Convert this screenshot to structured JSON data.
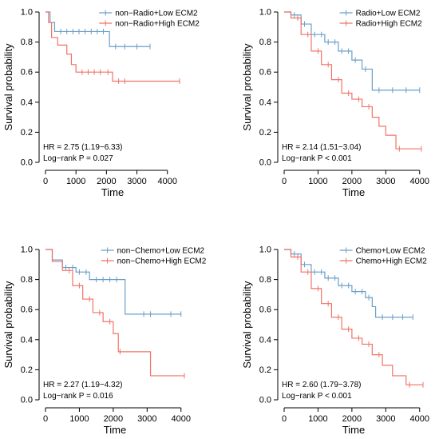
{
  "chart_data": [
    {
      "type": "line",
      "subtype": "kaplan-meier",
      "xlabel": "Time",
      "ylabel": "Survival probability",
      "xlim": [
        0,
        4400
      ],
      "ylim": [
        0.0,
        1.0
      ],
      "xticks": [
        0,
        1000,
        2000,
        3000,
        4000
      ],
      "yticks": [
        0.0,
        0.2,
        0.4,
        0.6,
        0.8,
        1.0
      ],
      "legend_position": "top-right",
      "annotations": [
        "HR = 2.75 (1.19−6.33)",
        "Log−rank P = 0.027"
      ],
      "series": [
        {
          "name": "non−Radio+Low ECM2",
          "color": "#6a9fc9",
          "x": [
            0,
            150,
            300,
            2100,
            2100,
            3430
          ],
          "y": [
            1.0,
            0.93,
            0.87,
            0.87,
            0.77,
            0.77
          ],
          "censor_x": [
            500,
            700,
            900,
            1100,
            1300,
            1500,
            1700,
            1900,
            2300,
            2600,
            3000,
            3430
          ]
        },
        {
          "name": "non−Radio+High ECM2",
          "color": "#f07467",
          "x": [
            0,
            100,
            200,
            400,
            700,
            850,
            1000,
            2200,
            4400
          ],
          "y": [
            1.0,
            0.93,
            0.83,
            0.78,
            0.72,
            0.65,
            0.6,
            0.54,
            0.54
          ],
          "censor_x": [
            1200,
            1400,
            1600,
            1800,
            2050,
            2400,
            2600,
            4400
          ]
        }
      ]
    },
    {
      "type": "line",
      "subtype": "kaplan-meier",
      "xlabel": "Time",
      "ylabel": "Survival probability",
      "xlim": [
        0,
        4100
      ],
      "ylim": [
        0.0,
        1.0
      ],
      "xticks": [
        0,
        1000,
        2000,
        3000,
        4000
      ],
      "yticks": [
        0.0,
        0.2,
        0.4,
        0.6,
        0.8,
        1.0
      ],
      "legend_position": "top-right",
      "annotations": [
        "HR = 2.14 (1.51−3.04)",
        "Log−rank P < 0.001"
      ],
      "series": [
        {
          "name": "Radio+Low ECM2",
          "color": "#6a9fc9",
          "x": [
            0,
            200,
            500,
            800,
            1200,
            1600,
            2000,
            2300,
            2600,
            2600,
            4000
          ],
          "y": [
            1.0,
            0.98,
            0.92,
            0.85,
            0.8,
            0.74,
            0.68,
            0.62,
            0.55,
            0.48,
            0.48
          ],
          "censor_x": [
            300,
            600,
            900,
            1100,
            1300,
            1500,
            1700,
            1900,
            2100,
            2400,
            2800,
            3200,
            3600,
            4000
          ]
        },
        {
          "name": "Radio+High ECM2",
          "color": "#f07467",
          "x": [
            0,
            200,
            500,
            800,
            1100,
            1400,
            1700,
            2000,
            2300,
            2600,
            2800,
            3000,
            3300,
            4050
          ],
          "y": [
            1.0,
            0.96,
            0.85,
            0.74,
            0.65,
            0.55,
            0.46,
            0.42,
            0.37,
            0.3,
            0.24,
            0.18,
            0.09,
            0.09
          ],
          "censor_x": [
            400,
            700,
            1000,
            1300,
            1600,
            1900,
            2200,
            2500,
            3400,
            4050
          ]
        }
      ]
    },
    {
      "type": "line",
      "subtype": "kaplan-meier",
      "xlabel": "Time",
      "ylabel": "Survival probability",
      "xlim": [
        0,
        4100
      ],
      "ylim": [
        0.0,
        1.0
      ],
      "xticks": [
        0,
        1000,
        2000,
        3000,
        4000
      ],
      "yticks": [
        0.0,
        0.2,
        0.4,
        0.6,
        0.8,
        1.0
      ],
      "legend_position": "top-right",
      "annotations": [
        "HR = 2.27 (1.19−4.32)",
        "Log−rank P = 0.016"
      ],
      "series": [
        {
          "name": "non−Chemo+Low ECM2",
          "color": "#6a9fc9",
          "x": [
            0,
            200,
            500,
            900,
            1300,
            2300,
            2350,
            4000
          ],
          "y": [
            1.0,
            0.93,
            0.88,
            0.85,
            0.8,
            0.8,
            0.57,
            0.57
          ],
          "censor_x": [
            600,
            800,
            1000,
            1200,
            1500,
            1700,
            1900,
            2100,
            2900,
            3100,
            3700,
            4000
          ]
        },
        {
          "name": "non−Chemo+High ECM2",
          "color": "#f07467",
          "x": [
            0,
            200,
            500,
            800,
            1100,
            1400,
            1700,
            2000,
            2150,
            3100,
            4100
          ],
          "y": [
            1.0,
            0.92,
            0.86,
            0.76,
            0.67,
            0.58,
            0.52,
            0.44,
            0.32,
            0.16,
            0.16
          ],
          "censor_x": [
            700,
            1000,
            1300,
            1600,
            1900,
            2200,
            4100
          ]
        }
      ]
    },
    {
      "type": "line",
      "subtype": "kaplan-meier",
      "xlabel": "Time",
      "ylabel": "Survival probability",
      "xlim": [
        0,
        4100
      ],
      "ylim": [
        0.0,
        1.0
      ],
      "xticks": [
        0,
        1000,
        2000,
        3000,
        4000
      ],
      "yticks": [
        0.0,
        0.2,
        0.4,
        0.6,
        0.8,
        1.0
      ],
      "legend_position": "top-right",
      "annotations": [
        "HR = 2.60 (1.79−3.78)",
        "Log−rank P < 0.001"
      ],
      "series": [
        {
          "name": "Chemo+Low ECM2",
          "color": "#6a9fc9",
          "x": [
            0,
            200,
            500,
            800,
            1200,
            1600,
            2000,
            2400,
            2600,
            2700,
            3800
          ],
          "y": [
            1.0,
            0.97,
            0.9,
            0.85,
            0.81,
            0.76,
            0.72,
            0.68,
            0.62,
            0.55,
            0.55
          ],
          "censor_x": [
            300,
            600,
            900,
            1100,
            1300,
            1500,
            1700,
            1900,
            2100,
            2300,
            2500,
            2900,
            3200,
            3500,
            3800
          ]
        },
        {
          "name": "Chemo+High ECM2",
          "color": "#f07467",
          "x": [
            0,
            200,
            500,
            800,
            1100,
            1400,
            1700,
            2000,
            2300,
            2600,
            2900,
            3200,
            3600,
            4100
          ],
          "y": [
            1.0,
            0.95,
            0.85,
            0.74,
            0.64,
            0.55,
            0.47,
            0.41,
            0.37,
            0.3,
            0.23,
            0.16,
            0.1,
            0.1
          ],
          "censor_x": [
            400,
            700,
            1000,
            1300,
            1600,
            1900,
            2200,
            2500,
            2800,
            3700,
            4100
          ]
        }
      ]
    }
  ]
}
